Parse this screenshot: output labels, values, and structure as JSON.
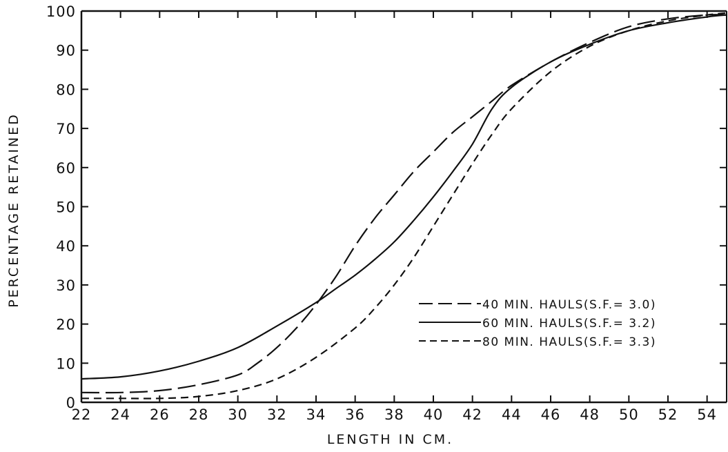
{
  "chart_data": {
    "type": "line",
    "xlabel": "LENGTH IN CM.",
    "ylabel": "PERCENTAGE RETAINED",
    "xlim": [
      22,
      55
    ],
    "ylim": [
      0,
      100
    ],
    "x_ticks": [
      22,
      24,
      26,
      28,
      30,
      32,
      34,
      36,
      38,
      40,
      42,
      44,
      46,
      48,
      50,
      52,
      54
    ],
    "y_ticks": [
      0,
      10,
      20,
      30,
      40,
      50,
      60,
      70,
      80,
      90,
      100
    ],
    "x_tick_labels": [
      "22",
      "24",
      "26",
      "28",
      "30",
      "32",
      "34",
      "36",
      "38",
      "40",
      "42",
      "44",
      "46",
      "48",
      "50",
      "52",
      "54"
    ],
    "y_tick_labels": [
      "0",
      "10",
      "20",
      "30",
      "40",
      "50",
      "60",
      "70",
      "80",
      "90",
      "100"
    ],
    "grid": false,
    "legend_position": "lower-right",
    "series": [
      {
        "name": "40 MIN. HAULS(S.F.= 3.0)",
        "style": "long-dash",
        "x": [
          22,
          24,
          26,
          28,
          30,
          31,
          32,
          33,
          34,
          35,
          36,
          37,
          38,
          39,
          40,
          41,
          42,
          43,
          44,
          46,
          48,
          50,
          52,
          54,
          55
        ],
        "y": [
          2.5,
          2.5,
          3,
          4.5,
          7,
          10,
          14,
          19,
          25,
          32,
          40,
          47,
          53,
          59,
          64,
          69,
          73,
          77,
          81,
          87,
          92,
          96,
          98,
          99,
          99
        ]
      },
      {
        "name": "60 MIN. HAULS(S.F.= 3.2)",
        "style": "solid",
        "x": [
          22,
          24,
          26,
          28,
          30,
          32,
          34,
          35,
          36,
          37,
          38,
          39,
          40,
          41,
          42,
          43,
          44,
          46,
          48,
          50,
          52,
          54,
          55
        ],
        "y": [
          6,
          6.5,
          8,
          10.5,
          14,
          19.5,
          25.5,
          29,
          32.5,
          36.5,
          41,
          46.5,
          52.5,
          59,
          66,
          75,
          80.5,
          87,
          91.5,
          95,
          97,
          98.5,
          99
        ]
      },
      {
        "name": "80 MIN. HAULS(S.F.= 3.3)",
        "style": "short-dash",
        "x": [
          22,
          24,
          26,
          28,
          30,
          32,
          34,
          36,
          37,
          38,
          39,
          40,
          41,
          42,
          43,
          44,
          46,
          48,
          50,
          52,
          54,
          55
        ],
        "y": [
          1,
          1,
          1,
          1.5,
          3,
          6,
          11.5,
          19,
          24,
          30,
          37,
          45,
          53,
          61,
          68.5,
          75,
          84.5,
          91,
          95,
          97.5,
          99,
          99.5
        ]
      }
    ]
  }
}
